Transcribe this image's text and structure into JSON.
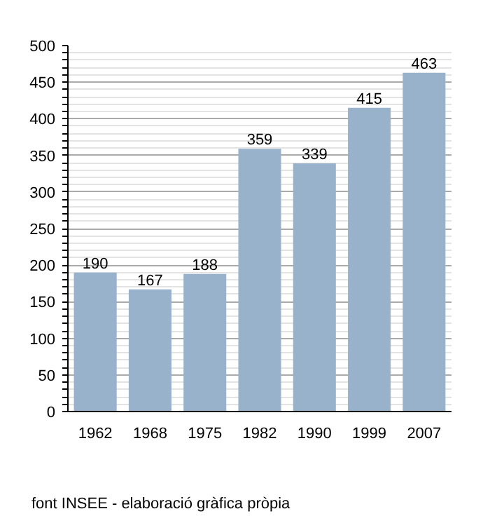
{
  "chart_data": {
    "type": "bar",
    "categories": [
      "1962",
      "1968",
      "1975",
      "1982",
      "1990",
      "1999",
      "2007"
    ],
    "values": [
      190,
      167,
      188,
      359,
      339,
      415,
      463
    ],
    "color": "#98b2cc",
    "ylim": [
      0,
      500
    ],
    "yticks": [
      0,
      50,
      100,
      150,
      200,
      250,
      300,
      350,
      400,
      450,
      500
    ],
    "grid": "y",
    "data_labels": true,
    "annotations": [
      "font INSEE - elaboració gràfica pròpia"
    ]
  }
}
